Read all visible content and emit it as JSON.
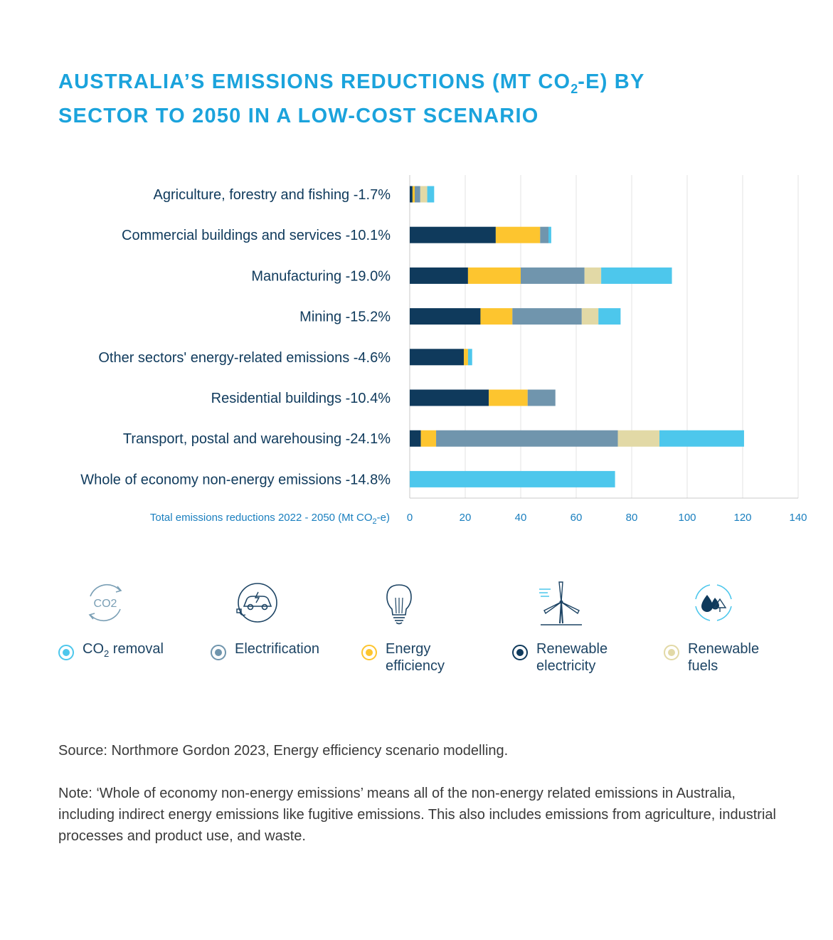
{
  "title_line1_pre": "Australia’s emissions reductions (Mt CO",
  "title_line1_sub": "2",
  "title_line1_post": "-e) by",
  "title_line2": "sector to 2050 in a low-cost scenario",
  "chart_data": {
    "type": "bar",
    "orientation": "horizontal",
    "stacked": true,
    "categories": [
      "Agriculture, forestry and fishing -1.7%",
      "Commercial buildings and services -10.1%",
      "Manufacturing -19.0%",
      "Mining -15.2%",
      "Other sectors' energy-related emissions -4.6%",
      "Residential buildings -10.4%",
      "Transport, postal and warehousing -24.1%",
      "Whole of economy non-energy emissions -14.8%"
    ],
    "series": [
      {
        "name": "Renewable electricity",
        "color": "#0f3a5c",
        "values": [
          1,
          31,
          21,
          25.5,
          19.5,
          28.5,
          4,
          0
        ]
      },
      {
        "name": "Energy efficiency",
        "color": "#fdc52f",
        "values": [
          0.8,
          16,
          19,
          11.5,
          1.5,
          14,
          5.5,
          0
        ]
      },
      {
        "name": "Electrification",
        "color": "#7095ad",
        "values": [
          2,
          3,
          23,
          25,
          0,
          10,
          65.5,
          0
        ]
      },
      {
        "name": "Renewable fuels",
        "color": "#e2d9a6",
        "values": [
          2.5,
          0,
          6,
          6,
          0,
          0,
          15,
          0
        ]
      },
      {
        "name": "CO2 removal",
        "color": "#4dc7ec",
        "values": [
          2.5,
          1,
          25.5,
          8,
          1.5,
          0,
          30.5,
          74
        ]
      }
    ],
    "xlabel_pre": "Total emissions reductions 2022 - 2050 (Mt CO",
    "xlabel_sub": "2",
    "xlabel_post": "-e)",
    "xlim": [
      0,
      140
    ],
    "xticks": [
      0,
      20,
      40,
      60,
      80,
      100,
      120,
      140
    ],
    "grid": true
  },
  "legend": [
    {
      "label_pre": "CO",
      "label_sub": "2",
      "label_post": " removal",
      "icon": "co2-cycle-icon",
      "dot_color": "#4dc7ec"
    },
    {
      "label": "Electrification",
      "icon": "electric-car-icon",
      "dot_color": "#7095ad"
    },
    {
      "label": "Energy\nefficiency",
      "icon": "light-bulb-icon",
      "dot_color": "#fdc52f"
    },
    {
      "label": "Renewable\nelectricity",
      "icon": "wind-turbine-icon",
      "dot_color": "#0f3a5c"
    },
    {
      "label": "Renewable\nfuels",
      "icon": "fuel-drops-icon",
      "dot_color": "#e2d9a6"
    }
  ],
  "icon_co2_text": "CO2",
  "source": "Source: Northmore Gordon 2023, Energy efficiency scenario modelling.",
  "note": "Note: ‘Whole of economy non-energy emissions’ means all of the non-energy related emissions in Australia, including indirect energy emissions like fugitive emissions. This also includes emissions from agriculture, industrial processes and product use, and waste."
}
